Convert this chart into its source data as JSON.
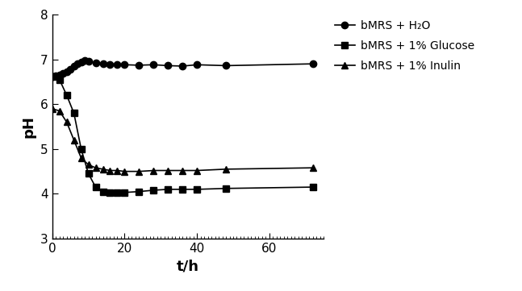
{
  "water_x": [
    0,
    1,
    2,
    3,
    4,
    5,
    6,
    7,
    8,
    9,
    10,
    12,
    14,
    16,
    18,
    20,
    24,
    28,
    32,
    36,
    40,
    48,
    72
  ],
  "water_y": [
    6.62,
    6.63,
    6.65,
    6.68,
    6.72,
    6.78,
    6.85,
    6.9,
    6.94,
    6.97,
    6.95,
    6.93,
    6.91,
    6.89,
    6.89,
    6.88,
    6.87,
    6.88,
    6.86,
    6.85,
    6.88,
    6.86,
    6.9
  ],
  "glucose_x": [
    0,
    2,
    4,
    6,
    8,
    10,
    12,
    14,
    16,
    18,
    20,
    24,
    28,
    32,
    36,
    40,
    48,
    72
  ],
  "glucose_y": [
    6.62,
    6.55,
    6.2,
    5.8,
    5.0,
    4.45,
    4.15,
    4.05,
    4.03,
    4.02,
    4.03,
    4.05,
    4.08,
    4.1,
    4.1,
    4.1,
    4.12,
    4.15
  ],
  "inulin_x": [
    0,
    2,
    4,
    6,
    8,
    10,
    12,
    14,
    16,
    18,
    20,
    24,
    28,
    32,
    36,
    40,
    48,
    72
  ],
  "inulin_y": [
    5.9,
    5.85,
    5.6,
    5.2,
    4.8,
    4.65,
    4.58,
    4.55,
    4.52,
    4.52,
    4.5,
    4.5,
    4.52,
    4.52,
    4.52,
    4.52,
    4.55,
    4.58
  ],
  "ylabel": "pH",
  "xlabel": "t/h",
  "ylim": [
    3,
    8
  ],
  "xlim": [
    0,
    75
  ],
  "yticks": [
    3,
    4,
    5,
    6,
    7,
    8
  ],
  "xticks": [
    0,
    20,
    40,
    60
  ],
  "legend_water": "bMRS + H₂O",
  "legend_glucose": "bMRS + 1% Glucose",
  "legend_inulin": "bMRS + 1% Inulin",
  "line_color": "#000000",
  "bg_color": "#ffffff"
}
